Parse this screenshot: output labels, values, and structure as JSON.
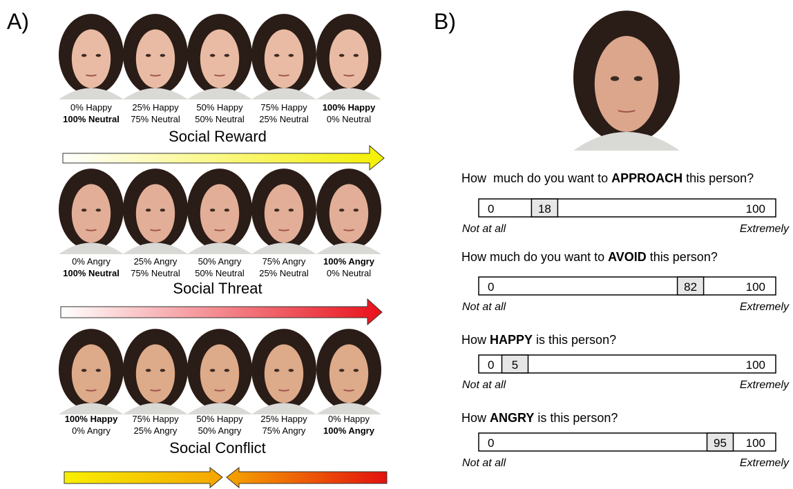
{
  "panel_a": {
    "label": "A)",
    "rows": [
      {
        "title": "Social Reward",
        "faces": [
          [
            {
              "text": "0% Happy",
              "bold": false
            },
            {
              "text": "100% Neutral",
              "bold": true
            }
          ],
          [
            {
              "text": "25% Happy",
              "bold": false
            },
            {
              "text": "75% Neutral",
              "bold": false
            }
          ],
          [
            {
              "text": "50% Happy",
              "bold": false
            },
            {
              "text": "50% Neutral",
              "bold": false
            }
          ],
          [
            {
              "text": "75% Happy",
              "bold": false
            },
            {
              "text": "25% Neutral",
              "bold": false
            }
          ],
          [
            {
              "text": "100% Happy",
              "bold": true
            },
            {
              "text": "0% Neutral",
              "bold": false
            }
          ]
        ]
      },
      {
        "title": "Social Threat",
        "faces": [
          [
            {
              "text": "0% Angry",
              "bold": false
            },
            {
              "text": "100% Neutral",
              "bold": true
            }
          ],
          [
            {
              "text": "25% Angry",
              "bold": false
            },
            {
              "text": "75% Neutral",
              "bold": false
            }
          ],
          [
            {
              "text": "50% Angry",
              "bold": false
            },
            {
              "text": "50% Neutral",
              "bold": false
            }
          ],
          [
            {
              "text": "75% Angry",
              "bold": false
            },
            {
              "text": "25% Neutral",
              "bold": false
            }
          ],
          [
            {
              "text": "100% Angry",
              "bold": true
            },
            {
              "text": "0% Neutral",
              "bold": false
            }
          ]
        ]
      },
      {
        "title": "Social Conflict",
        "faces": [
          [
            {
              "text": "100% Happy",
              "bold": true
            },
            {
              "text": "0% Angry",
              "bold": false
            }
          ],
          [
            {
              "text": "75% Happy",
              "bold": false
            },
            {
              "text": "25% Angry",
              "bold": false
            }
          ],
          [
            {
              "text": "50% Happy",
              "bold": false
            },
            {
              "text": "50% Angry",
              "bold": false
            }
          ],
          [
            {
              "text": "25% Happy",
              "bold": false
            },
            {
              "text": "75% Angry",
              "bold": false
            }
          ],
          [
            {
              "text": "0% Happy",
              "bold": false
            },
            {
              "text": "100% Angry",
              "bold": true
            }
          ]
        ]
      }
    ]
  },
  "panel_b": {
    "label": "B)",
    "questions": [
      {
        "prefix": "How  much do you want to ",
        "emphasis": "APPROACH",
        "suffix": " this person?",
        "min": 0,
        "max": 100,
        "value": 18,
        "low_label": "Not at all",
        "high_label": "Extremely"
      },
      {
        "prefix": "How much do you want to ",
        "emphasis": "AVOID",
        "suffix": " this person?",
        "min": 0,
        "max": 100,
        "value": 82,
        "low_label": "Not at all",
        "high_label": "Extremely"
      },
      {
        "prefix": "How ",
        "emphasis": "HAPPY",
        "suffix": " is this person?",
        "min": 0,
        "max": 100,
        "value": 5,
        "low_label": "Not at all",
        "high_label": "Extremely"
      },
      {
        "prefix": "How ",
        "emphasis": "ANGRY",
        "suffix": " is this person?",
        "min": 0,
        "max": 100,
        "value": 95,
        "low_label": "Not at all",
        "high_label": "Extremely"
      }
    ]
  }
}
